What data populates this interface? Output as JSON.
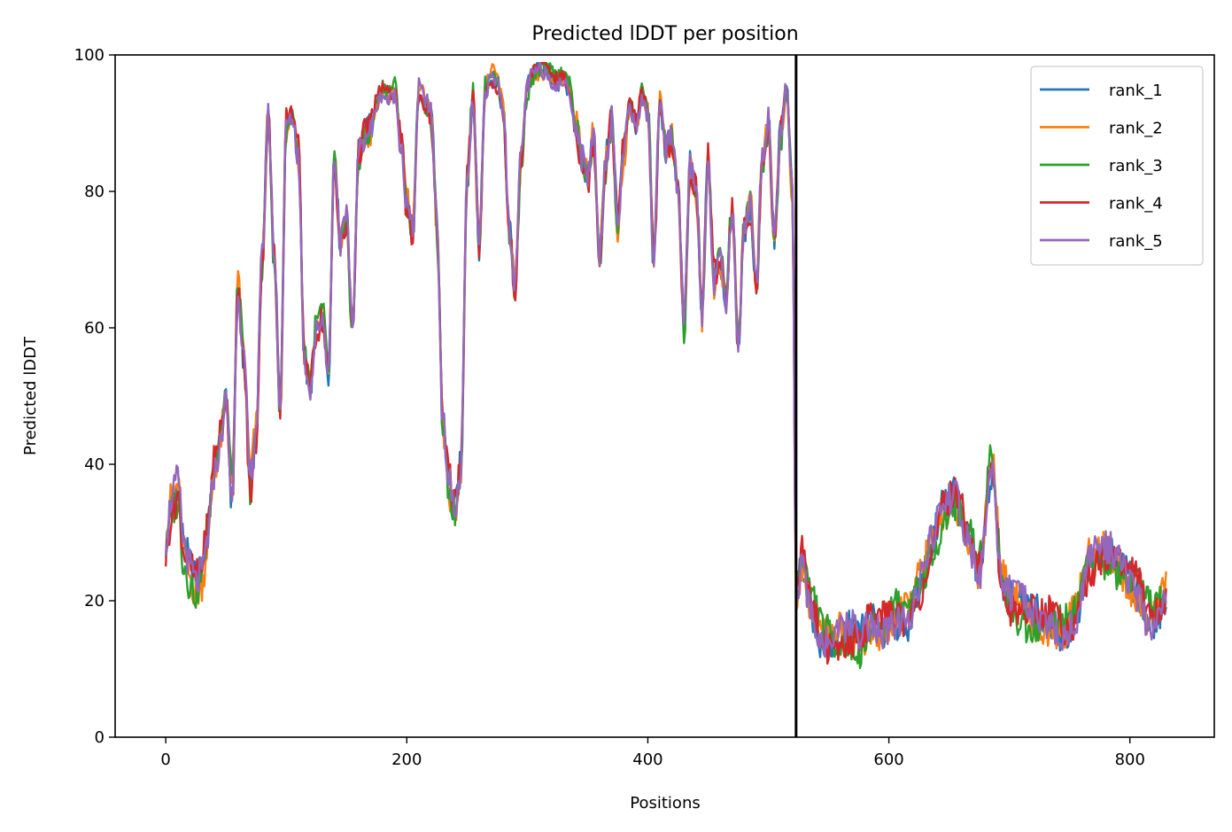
{
  "chart_data": {
    "type": "line",
    "title": "Predicted lDDT per position",
    "xlabel": "Positions",
    "ylabel": "Predicted lDDT",
    "xlim": [
      -42,
      870
    ],
    "ylim": [
      0,
      100
    ],
    "xticks": [
      0,
      200,
      400,
      600,
      800
    ],
    "yticks": [
      0,
      20,
      40,
      60,
      80,
      100
    ],
    "grid": false,
    "legend": "top-right",
    "chain_break": 523,
    "series_keyframes": {
      "x": [
        0,
        5,
        10,
        15,
        20,
        25,
        30,
        35,
        40,
        45,
        50,
        55,
        60,
        65,
        70,
        75,
        80,
        85,
        90,
        95,
        100,
        105,
        110,
        115,
        120,
        125,
        130,
        135,
        140,
        145,
        150,
        155,
        160,
        165,
        170,
        175,
        180,
        185,
        190,
        195,
        200,
        205,
        210,
        215,
        220,
        225,
        230,
        235,
        240,
        245,
        250,
        255,
        260,
        265,
        270,
        275,
        280,
        285,
        290,
        295,
        300,
        305,
        310,
        315,
        320,
        325,
        330,
        335,
        340,
        345,
        350,
        355,
        360,
        365,
        370,
        375,
        380,
        385,
        390,
        395,
        400,
        405,
        410,
        415,
        420,
        425,
        430,
        435,
        440,
        445,
        450,
        455,
        460,
        465,
        470,
        475,
        480,
        485,
        490,
        495,
        500,
        505,
        510,
        515,
        520,
        523,
        528,
        535,
        545,
        555,
        565,
        575,
        585,
        595,
        605,
        615,
        625,
        635,
        645,
        655,
        665,
        675,
        685,
        695,
        705,
        715,
        725,
        735,
        745,
        755,
        765,
        775,
        785,
        795,
        805,
        815,
        825,
        830
      ],
      "y": [
        28,
        34,
        36,
        27,
        24,
        22,
        24,
        30,
        40,
        44,
        50,
        36,
        66,
        55,
        37,
        44,
        70,
        91,
        70,
        48,
        90,
        91,
        86,
        56,
        52,
        60,
        62,
        54,
        85,
        72,
        75,
        60,
        85,
        88,
        89,
        93,
        95,
        94,
        95,
        88,
        78,
        74,
        95,
        93,
        91,
        75,
        45,
        37,
        33,
        40,
        82,
        94,
        72,
        95,
        97,
        96,
        92,
        74,
        66,
        85,
        95,
        97,
        98,
        98,
        97,
        96,
        97,
        95,
        90,
        85,
        82,
        88,
        70,
        84,
        90,
        75,
        86,
        93,
        90,
        94,
        92,
        70,
        93,
        86,
        88,
        80,
        60,
        83,
        80,
        62,
        85,
        67,
        70,
        65,
        78,
        58,
        75,
        78,
        66,
        85,
        90,
        72,
        88,
        95,
        80,
        22,
        26,
        20,
        15,
        14,
        15,
        14,
        16,
        16,
        18,
        18,
        22,
        27,
        33,
        35,
        30,
        25,
        40,
        22,
        19,
        18,
        17,
        17,
        16,
        18,
        25,
        27,
        26,
        24,
        22,
        18,
        19,
        21
      ]
    },
    "series": [
      {
        "name": "rank_1",
        "color": "#1f77b4"
      },
      {
        "name": "rank_2",
        "color": "#ff7f0e"
      },
      {
        "name": "rank_3",
        "color": "#2ca02c"
      },
      {
        "name": "rank_4",
        "color": "#d62728"
      },
      {
        "name": "rank_5",
        "color": "#9467bd"
      }
    ]
  }
}
